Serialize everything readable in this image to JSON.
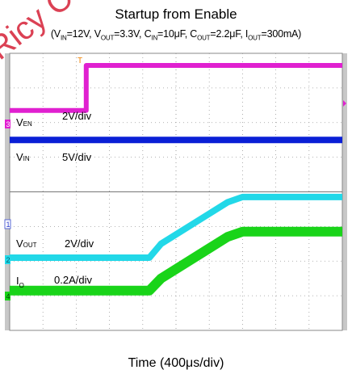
{
  "chart_data": {
    "type": "line",
    "title": "Startup from Enable",
    "subtitle": {
      "vin": "12V",
      "vout": "3.3V",
      "cin": "10μF",
      "cout": "2.2μF",
      "iout": "300mA"
    },
    "xlabel": "Time (400μs/div)",
    "divisions": {
      "x": 10,
      "y": 8
    },
    "series": [
      {
        "name": "V_EN",
        "scale": "2V/div",
        "color": "#e020d0",
        "channel": "3",
        "x": [
          0,
          2.3,
          2.3,
          10
        ],
        "y": [
          6.35,
          6.35,
          7.65,
          7.65
        ]
      },
      {
        "name": "V_IN",
        "scale": "5V/div",
        "color": "#0a1fd6",
        "channel": "",
        "x": [
          0,
          10
        ],
        "y": [
          5.5,
          5.5
        ]
      },
      {
        "name": "V_OUT",
        "scale": "2V/div",
        "color": "#22d8e8",
        "channel": "2",
        "x": [
          0,
          4.2,
          4.55,
          6.55,
          7.0,
          10
        ],
        "y": [
          2.1,
          2.1,
          2.5,
          3.7,
          3.85,
          3.85
        ]
      },
      {
        "name": "I_O",
        "scale": "0.2A/div",
        "color": "#19d419",
        "channel": "4",
        "x": [
          0,
          4.2,
          4.55,
          6.55,
          7.0,
          10
        ],
        "y": [
          1.15,
          1.15,
          1.5,
          2.7,
          2.85,
          2.85
        ]
      }
    ],
    "grid": true
  },
  "labels": {
    "title": "Startup from Enable",
    "xlabel": "Time (400μs/div)",
    "ven_name": "V",
    "ven_sub": "EN",
    "ven_scale": "2V/div",
    "vin_name": "V",
    "vin_sub": "IN",
    "vin_scale": "5V/div",
    "vout_name": "V",
    "vout_sub": "OUT",
    "vout_scale": "2V/div",
    "io_name": "I",
    "io_sub": "O",
    "io_scale": "0.2A/div",
    "marker_1": "1",
    "marker_2": "2",
    "marker_3": "3",
    "marker_4": "4",
    "marker_t": "T"
  },
  "watermark": "Ricy Conf"
}
